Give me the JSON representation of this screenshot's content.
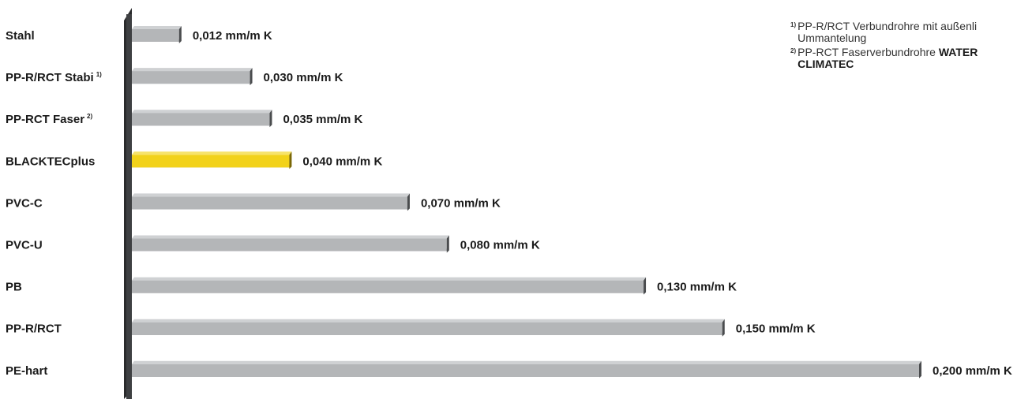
{
  "chart_data": {
    "type": "bar",
    "orientation": "horizontal",
    "categories": [
      {
        "name": "Stahl",
        "sup": ""
      },
      {
        "name": "PP-R/RCT Stabi",
        "sup": "1)"
      },
      {
        "name": "PP-RCT Faser",
        "sup": "2)"
      },
      {
        "name": "BLACKTECplus",
        "sup": ""
      },
      {
        "name": "PVC-C",
        "sup": ""
      },
      {
        "name": "PVC-U",
        "sup": ""
      },
      {
        "name": "PB",
        "sup": ""
      },
      {
        "name": "PP-R/RCT",
        "sup": ""
      },
      {
        "name": "PE-hart",
        "sup": ""
      }
    ],
    "values": [
      0.012,
      0.03,
      0.035,
      0.04,
      0.07,
      0.08,
      0.13,
      0.15,
      0.2
    ],
    "value_labels": [
      "0,012 mm/m K",
      "0,030 mm/m K",
      "0,035 mm/m K",
      "0,040 mm/m K",
      "0,070 mm/m K",
      "0,080 mm/m K",
      "0,130 mm/m K",
      "0,150 mm/m K",
      "0,200 mm/m K"
    ],
    "highlight_index": 3,
    "xlim": [
      0,
      0.2
    ],
    "grid": false,
    "colors": {
      "bar": "#b4b6b8",
      "bar_shadow": "#6e7072",
      "bar_end": "#4a4c4e",
      "highlight": "#f2d21a",
      "highlight_shadow": "#b79a08",
      "highlight_end": "#7a6706",
      "axis": "#3e4042",
      "axis_dark": "#2a2b2c"
    }
  },
  "footnotes": [
    {
      "mark": "1)",
      "text": "PP-R/RCT Verbundrohre mit außenli",
      "text2": "Ummantelung",
      "bold": ""
    },
    {
      "mark": "2)",
      "text": "PP-RCT Faserverbundrohre ",
      "bold": "WATER",
      "text2": "CLIMATEC"
    }
  ]
}
